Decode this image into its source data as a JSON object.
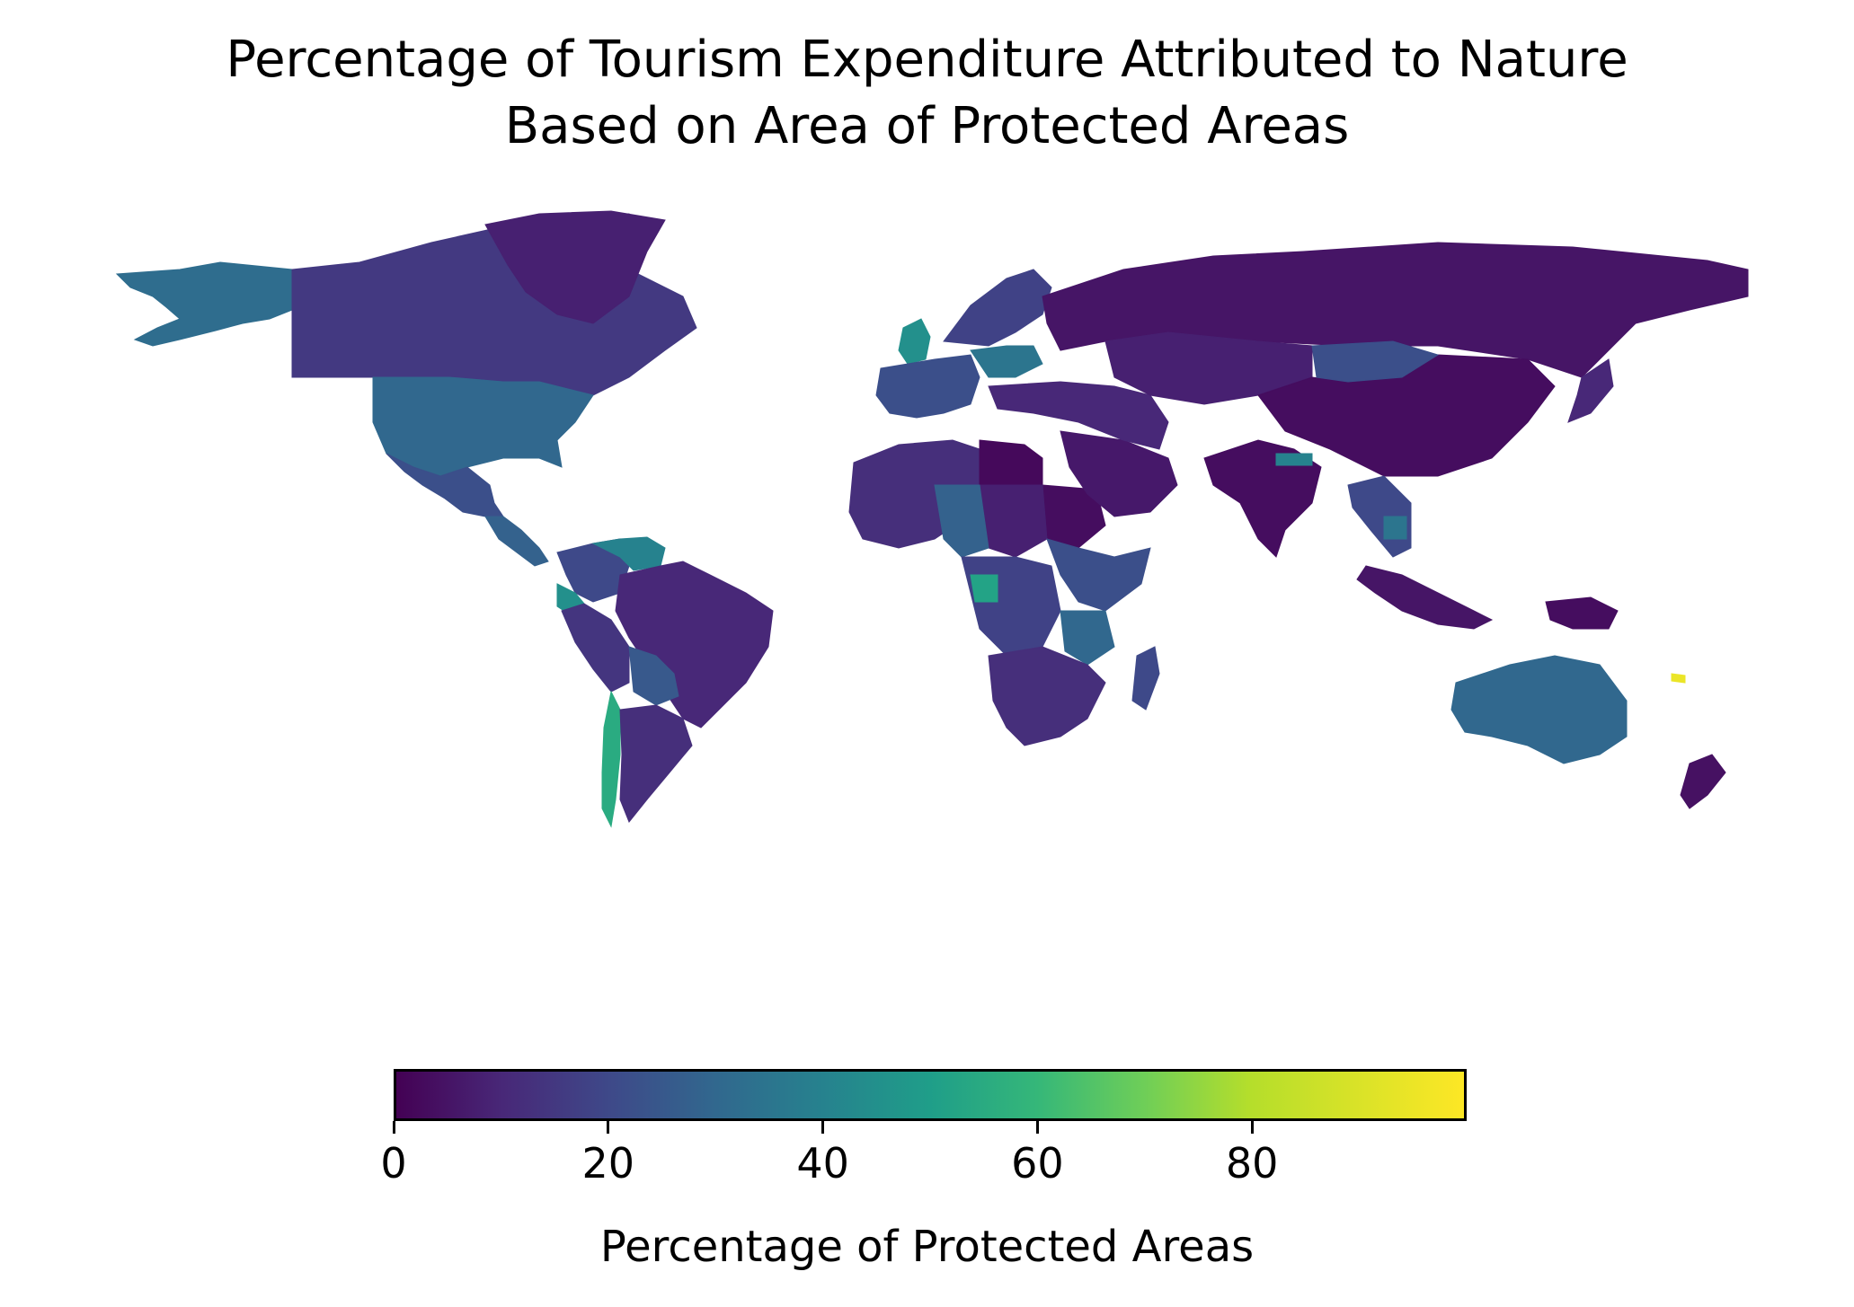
{
  "figure": {
    "title_line1": "Percentage of Tourism Expenditure Attributed to Nature",
    "title_line2": "Based on Area of Protected Areas"
  },
  "colorbar": {
    "label": "Percentage of Protected Areas",
    "min": 0,
    "max": 100,
    "ticks": [
      "0",
      "20",
      "40",
      "60",
      "80"
    ],
    "colormap": "viridis"
  },
  "colors": {
    "background": "#ffffff",
    "v0": "#440154",
    "v10": "#482878",
    "v20": "#3e4989",
    "v30": "#31688e",
    "v40": "#26828e",
    "v50": "#1f9e89",
    "v60": "#35b779",
    "v70": "#6ece58",
    "v80": "#b5de2b",
    "v100": "#fde725"
  },
  "map_regions": [
    {
      "region": "Alaska",
      "value": 32
    },
    {
      "region": "Canada",
      "value": 15
    },
    {
      "region": "United States",
      "value": 30
    },
    {
      "region": "Mexico",
      "value": 22
    },
    {
      "region": "Central America",
      "value": 28
    },
    {
      "region": "Colombia",
      "value": 20
    },
    {
      "region": "Venezuela",
      "value": 40
    },
    {
      "region": "Ecuador",
      "value": 45
    },
    {
      "region": "Brazil",
      "value": 10
    },
    {
      "region": "Peru",
      "value": 14
    },
    {
      "region": "Bolivia",
      "value": 25
    },
    {
      "region": "Chile",
      "value": 55
    },
    {
      "region": "Argentina",
      "value": 12
    },
    {
      "region": "Greenland",
      "value": 8
    },
    {
      "region": "United Kingdom",
      "value": 45
    },
    {
      "region": "Western Europe",
      "value": 22
    },
    {
      "region": "Germany",
      "value": 35
    },
    {
      "region": "Scandinavia",
      "value": 18
    },
    {
      "region": "Russia",
      "value": 5
    },
    {
      "region": "North Africa",
      "value": 12
    },
    {
      "region": "Libya",
      "value": 2
    },
    {
      "region": "Sudan",
      "value": 3
    },
    {
      "region": "Chad",
      "value": 8
    },
    {
      "region": "Niger",
      "value": 28
    },
    {
      "region": "Central Africa",
      "value": 18
    },
    {
      "region": "Gabon",
      "value": 52
    },
    {
      "region": "East Africa",
      "value": 22
    },
    {
      "region": "Tanzania",
      "value": 30
    },
    {
      "region": "Southern Africa",
      "value": 12
    },
    {
      "region": "Madagascar",
      "value": 20
    },
    {
      "region": "Arabia",
      "value": 6
    },
    {
      "region": "Middle East",
      "value": 10
    },
    {
      "region": "Central Asia",
      "value": 8
    },
    {
      "region": "India",
      "value": 3
    },
    {
      "region": "Nepal",
      "value": 40
    },
    {
      "region": "China",
      "value": 3
    },
    {
      "region": "Mongolia",
      "value": 22
    },
    {
      "region": "Southeast Asia",
      "value": 20
    },
    {
      "region": "Cambodia",
      "value": 35
    },
    {
      "region": "Indonesia",
      "value": 5
    },
    {
      "region": "Papua New Guinea",
      "value": 3
    },
    {
      "region": "Japan",
      "value": 10
    },
    {
      "region": "Australia",
      "value": 30
    },
    {
      "region": "New Zealand",
      "value": 4
    },
    {
      "region": "New Caledonia",
      "value": 95
    }
  ]
}
